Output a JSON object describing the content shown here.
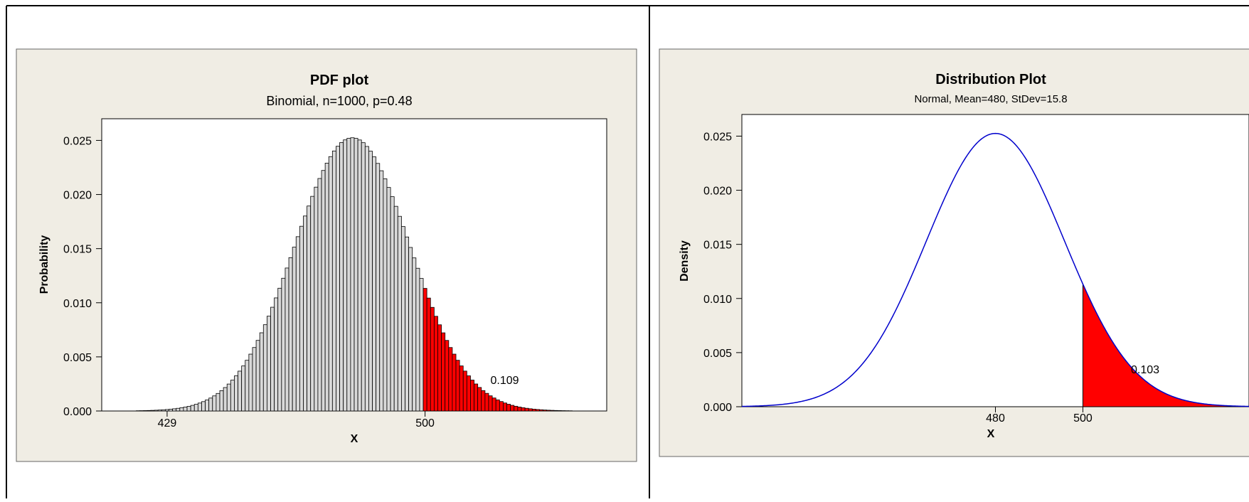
{
  "chart_data": [
    {
      "type": "bar",
      "title": "PDF plot",
      "subtitle": "Binomial, n=1000, p=0.48",
      "xlabel": "X",
      "ylabel": "Probability",
      "distribution": {
        "family": "binomial",
        "n": 1000,
        "p": 0.48
      },
      "x_range": [
        411,
        550
      ],
      "bar_x_range": [
        421,
        540
      ],
      "ylim": [
        0,
        0.027
      ],
      "xticks": [
        429,
        500
      ],
      "yticks": [
        0.0,
        0.005,
        0.01,
        0.015,
        0.02,
        0.025
      ],
      "ytick_labels": [
        "0.000",
        "0.005",
        "0.010",
        "0.015",
        "0.020",
        "0.025"
      ],
      "shaded_region": {
        "from": 500,
        "direction": "right",
        "color": "#ff0000"
      },
      "bar_color": "#d9d9d9",
      "annotation": {
        "text": "0.109",
        "x": 518,
        "y": 0.0025
      },
      "grid": false,
      "legend": "none"
    },
    {
      "type": "line",
      "title": "Distribution Plot",
      "subtitle": "Normal, Mean=480, StDev=15.8",
      "xlabel": "X",
      "ylabel": "Density",
      "distribution": {
        "family": "normal",
        "mean": 480,
        "stdev": 15.8
      },
      "x_range": [
        422,
        538
      ],
      "ylim": [
        0,
        0.027
      ],
      "xticks": [
        480,
        500
      ],
      "yticks": [
        0.0,
        0.005,
        0.01,
        0.015,
        0.02,
        0.025
      ],
      "ytick_labels": [
        "0.000",
        "0.005",
        "0.010",
        "0.015",
        "0.020",
        "0.025"
      ],
      "shaded_region": {
        "from": 500,
        "direction": "right",
        "color": "#ff0000"
      },
      "line_color": "#0000cc",
      "annotation": {
        "text": "0.103",
        "x": 511,
        "y": 0.0031
      },
      "grid": false,
      "legend": "none"
    }
  ]
}
